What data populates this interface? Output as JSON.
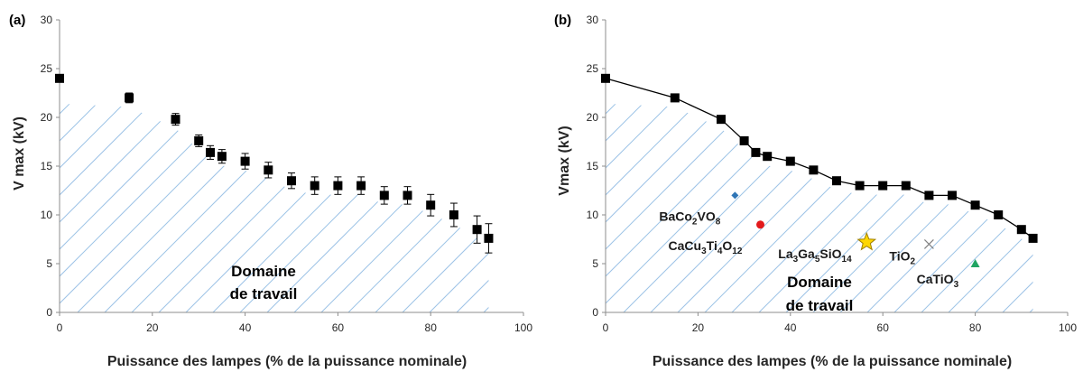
{
  "chart_data": [
    {
      "type": "scatter",
      "panel_label": "(a)",
      "title": "",
      "xlabel": "Puissance des lampes (% de la puissance nominale)",
      "ylabel": "V max (kV)",
      "xlim": [
        0,
        100
      ],
      "ylim": [
        0,
        30
      ],
      "xticks": [
        0,
        20,
        40,
        60,
        80,
        100
      ],
      "yticks": [
        0,
        5,
        10,
        15,
        20,
        25,
        30
      ],
      "grid": false,
      "series": [
        {
          "marker": "square",
          "color": "#000000",
          "x": [
            0,
            15,
            25,
            30,
            32.5,
            35,
            40,
            45,
            50,
            55,
            60,
            65,
            70,
            75,
            80,
            85,
            90,
            92.5
          ],
          "y": [
            24,
            22,
            19.8,
            17.6,
            16.4,
            16,
            15.5,
            14.6,
            13.5,
            13,
            13,
            13,
            12,
            12,
            11,
            10,
            8.5,
            7.6
          ],
          "error": [
            0.3,
            0.5,
            0.6,
            0.6,
            0.7,
            0.7,
            0.8,
            0.8,
            0.8,
            0.9,
            0.9,
            0.9,
            0.9,
            0.9,
            1.1,
            1.2,
            1.4,
            1.5
          ]
        }
      ],
      "annotations": [
        {
          "text_line1": "Domaine",
          "text_line2": "de travail"
        }
      ],
      "hatch_color": "#9dc3e6"
    },
    {
      "type": "line",
      "panel_label": "(b)",
      "title": "",
      "xlabel": "Puissance des lampes (% de la puissance nominale)",
      "ylabel": "Vmax (kV)",
      "xlim": [
        0,
        100
      ],
      "ylim": [
        0,
        30
      ],
      "xticks": [
        0,
        20,
        40,
        60,
        80,
        100
      ],
      "yticks": [
        0,
        5,
        10,
        15,
        20,
        25,
        30
      ],
      "grid": false,
      "series": [
        {
          "marker": "square",
          "color": "#000000",
          "x": [
            0,
            15,
            25,
            30,
            32.5,
            35,
            40,
            45,
            50,
            55,
            60,
            65,
            70,
            75,
            80,
            85,
            90,
            92.5
          ],
          "y": [
            24,
            22,
            19.8,
            17.6,
            16.4,
            16,
            15.5,
            14.6,
            13.5,
            13,
            13,
            13,
            12,
            12,
            11,
            10,
            8.5,
            7.6
          ]
        }
      ],
      "materials": [
        {
          "base": [
            "BaCo",
            "2",
            "VO",
            "8"
          ],
          "x": 28,
          "y": 12,
          "marker": "diamond",
          "color": "#2e75b6"
        },
        {
          "base": [
            "CaCu",
            "3",
            "Ti",
            "4",
            "O",
            "12"
          ],
          "x": 33.5,
          "y": 9,
          "marker": "circle",
          "color": "#e31a1c"
        },
        {
          "base": [
            "La",
            "3",
            "Ga",
            "5",
            "SiO",
            "14"
          ],
          "x": 56.5,
          "y": 7.2,
          "marker": "star",
          "color": "#ffd700"
        },
        {
          "base": [
            "TiO",
            "2"
          ],
          "x": 70,
          "y": 7,
          "marker": "x",
          "color": "#808080"
        },
        {
          "base": [
            "CaTiO",
            "3"
          ],
          "x": 80,
          "y": 5,
          "marker": "triangle",
          "color": "#1fa463"
        }
      ],
      "annotations": [
        {
          "text_line1": "Domaine",
          "text_line2": "de travail"
        }
      ],
      "hatch_color": "#9dc3e6"
    }
  ]
}
